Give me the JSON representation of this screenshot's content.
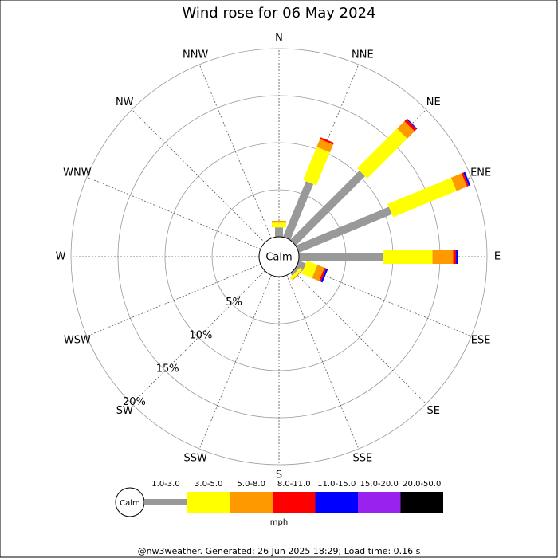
{
  "chart_data": {
    "type": "windrose",
    "title": "Wind rose for 06 May 2024",
    "directions": [
      "N",
      "NNE",
      "NE",
      "ENE",
      "E",
      "ESE",
      "SE",
      "SSE",
      "S",
      "SSW",
      "SW",
      "WSW",
      "W",
      "WNW",
      "NW",
      "NNW"
    ],
    "series": [
      {
        "name": "1.0-3.0",
        "color": "#999999",
        "values": [
          1.0,
          6.4,
          10.4,
          10.7,
          9.0,
          0.8,
          0.3,
          0,
          0,
          0,
          0,
          0,
          0,
          0,
          0,
          0
        ]
      },
      {
        "name": "3.0-5.0",
        "color": "#ffff00",
        "values": [
          0.5,
          3.8,
          6.0,
          7.3,
          5.2,
          1.2,
          0.3,
          0,
          0,
          0,
          0,
          0,
          0,
          0,
          0,
          0
        ]
      },
      {
        "name": "5.0-8.0",
        "color": "#ff9900",
        "values": [
          0.2,
          0.9,
          1.1,
          1.2,
          2.2,
          0.8,
          0.1,
          0,
          0,
          0,
          0,
          0,
          0,
          0,
          0,
          0
        ]
      },
      {
        "name": "8.0-11.0",
        "color": "#ff0000",
        "values": [
          0,
          0.2,
          0.3,
          0.2,
          0.3,
          0.2,
          0,
          0,
          0,
          0,
          0,
          0,
          0,
          0,
          0,
          0
        ]
      },
      {
        "name": "11.0-15.0",
        "color": "#0000ff",
        "values": [
          0,
          0,
          0.1,
          0.2,
          0.2,
          0.2,
          0,
          0,
          0,
          0,
          0,
          0,
          0,
          0,
          0,
          0
        ]
      },
      {
        "name": "15.0-20.0",
        "color": "#9922ee",
        "values": [
          0,
          0,
          0,
          0,
          0,
          0,
          0,
          0,
          0,
          0,
          0,
          0,
          0,
          0,
          0,
          0
        ]
      },
      {
        "name": "20.0-50.0",
        "color": "#000000",
        "values": [
          0,
          0,
          0,
          0,
          0,
          0,
          0,
          0,
          0,
          0,
          0,
          0,
          0,
          0,
          0,
          0
        ]
      }
    ],
    "rlim": [
      0,
      20
    ],
    "rticks": [
      {
        "value": 5,
        "label": "5%"
      },
      {
        "value": 10,
        "label": "10%"
      },
      {
        "value": 15,
        "label": "15%"
      },
      {
        "value": 20,
        "label": "20%"
      }
    ],
    "calm_label": "Calm",
    "unit": "mph"
  },
  "footer": "@nw3weather. Generated: 26 Jun 2025 18:29; Load time: 0.16 s"
}
